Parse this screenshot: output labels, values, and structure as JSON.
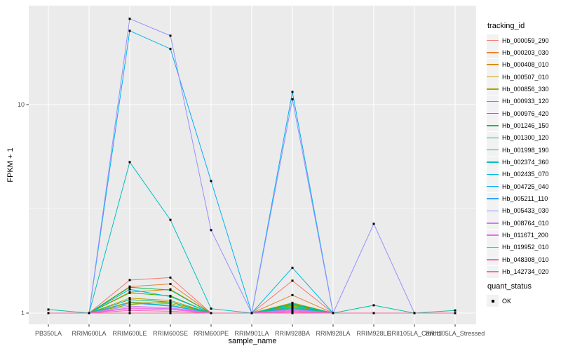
{
  "chart_data": {
    "type": "line",
    "title": "",
    "xlabel": "sample_name",
    "ylabel": "FPKM + 1",
    "y_scale": "log10",
    "y_breaks": [
      1,
      10
    ],
    "y_minor_breaks": [
      3.162
    ],
    "ylim": [
      0.95,
      30
    ],
    "grid": "on",
    "legend_position": "right",
    "panel_bg": "#EBEBEB",
    "grid_color": "#FFFFFF",
    "tick_text_color": "#4D4D4D",
    "point_color": "#000000",
    "categories": [
      "PB350LA",
      "RRIM600LA",
      "RRIM600LE",
      "RRIM600SE",
      "RRIM600PE",
      "RRIM901LA",
      "RRIM928BA",
      "RRIM928LA",
      "RRIM928LE",
      "RRII105LA_Control",
      "RRII105LA_Stressed"
    ],
    "series": [
      {
        "name": "Hb_000059_290",
        "color": "#F8766D",
        "values": [
          1,
          1,
          1.44,
          1.48,
          1,
          1,
          1.43,
          1,
          1,
          1,
          1
        ]
      },
      {
        "name": "Hb_000203_030",
        "color": "#EA8331",
        "values": [
          1,
          1,
          1.34,
          1.38,
          1,
          1,
          1.22,
          1,
          1,
          1,
          1
        ]
      },
      {
        "name": "Hb_000408_010",
        "color": "#D89000",
        "values": [
          1,
          1,
          1.26,
          1.3,
          1,
          1,
          1.12,
          1,
          1,
          1,
          1
        ]
      },
      {
        "name": "Hb_000507_010",
        "color": "#C09B00",
        "values": [
          1,
          1,
          1.18,
          1.15,
          1,
          1,
          1.08,
          1,
          1,
          1,
          1
        ]
      },
      {
        "name": "Hb_000856_330",
        "color": "#A3A500",
        "values": [
          1,
          1,
          1.13,
          1.11,
          1,
          1,
          1.05,
          1,
          1,
          1,
          1
        ]
      },
      {
        "name": "Hb_000933_120",
        "color": "#7CAE00",
        "values": [
          1,
          1,
          1.1,
          1.13,
          1,
          1,
          1.04,
          1,
          1,
          1,
          1
        ]
      },
      {
        "name": "Hb_000976_420",
        "color": "#39B600",
        "values": [
          1,
          1,
          1.25,
          1.21,
          1,
          1,
          1.09,
          1,
          1,
          1,
          1
        ]
      },
      {
        "name": "Hb_001246_150",
        "color": "#00BB4E",
        "values": [
          1,
          1,
          1.33,
          1.29,
          1,
          1,
          1.11,
          1,
          1,
          1,
          1
        ]
      },
      {
        "name": "Hb_001300_120",
        "color": "#00BF7D",
        "values": [
          1,
          1,
          1.16,
          1.13,
          1,
          1,
          1.06,
          1,
          1,
          1,
          1
        ]
      },
      {
        "name": "Hb_001998_190",
        "color": "#00C1A3",
        "values": [
          1.04,
          1,
          1.12,
          1.09,
          1,
          1,
          1.07,
          1,
          1.09,
          1,
          1.03
        ]
      },
      {
        "name": "Hb_002374_360",
        "color": "#00BFC4",
        "values": [
          1,
          1,
          5.3,
          2.8,
          1.05,
          1,
          1.1,
          1,
          1,
          1,
          1
        ]
      },
      {
        "name": "Hb_002435_070",
        "color": "#00BAE0",
        "values": [
          1,
          1,
          1.3,
          1.2,
          1,
          1,
          1.65,
          1,
          1,
          1,
          1
        ]
      },
      {
        "name": "Hb_004725_040",
        "color": "#00B0F6",
        "values": [
          1,
          1,
          22.6,
          18.5,
          4.3,
          1,
          11.5,
          1,
          1,
          1,
          1
        ]
      },
      {
        "name": "Hb_005211_110",
        "color": "#35A2FF",
        "values": [
          1,
          1,
          1.12,
          1.08,
          1,
          1,
          1.05,
          1,
          1,
          1,
          1
        ]
      },
      {
        "name": "Hb_005433_030",
        "color": "#9590FF",
        "values": [
          1,
          1,
          25.8,
          21.4,
          2.5,
          1,
          10.6,
          1,
          2.68,
          1,
          1
        ]
      },
      {
        "name": "Hb_008764_010",
        "color": "#C77CFF",
        "values": [
          1,
          1,
          1.08,
          1.06,
          1,
          1,
          1.04,
          1,
          1,
          1,
          1
        ]
      },
      {
        "name": "Hb_011671_200",
        "color": "#E76BF3",
        "values": [
          1,
          1,
          1.06,
          1.05,
          1,
          1,
          1.03,
          1,
          1,
          1,
          1
        ]
      },
      {
        "name": "Hb_019952_010",
        "color": "#FA62DB",
        "values": [
          1,
          1,
          1.05,
          1.04,
          1,
          1,
          1.02,
          1,
          1,
          1,
          1
        ]
      },
      {
        "name": "Hb_048308_010",
        "color": "#FF62BC",
        "values": [
          1,
          1,
          1.03,
          1.02,
          1,
          1,
          1.01,
          1,
          1,
          1,
          1
        ]
      },
      {
        "name": "Hb_142734_020",
        "color": "#FF6A98",
        "values": [
          1,
          1,
          1.0,
          1.0,
          1,
          1,
          1.0,
          1,
          1,
          1,
          1
        ]
      }
    ]
  },
  "legend": {
    "title": "tracking_id"
  },
  "legend2": {
    "title": "quant_status",
    "items": [
      {
        "label": "OK"
      }
    ]
  },
  "axes": {
    "x_title": "sample_name",
    "y_title": "FPKM + 1",
    "y_tick_labels": [
      "10",
      "1"
    ]
  }
}
